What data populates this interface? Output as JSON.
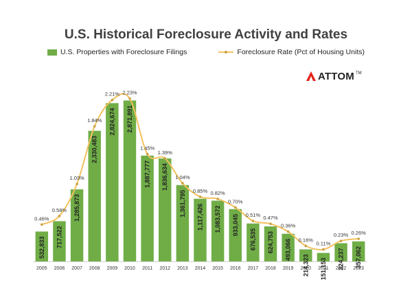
{
  "title": "U.S. Historical Foreclosure Activity and Rates",
  "legend": {
    "bar_label": "U.S. Properties with Foreclosure Filings",
    "line_label": "Foreclosure Rate (Pct of Housing Units)"
  },
  "logo": {
    "text": "ATTOM",
    "mark": "TM"
  },
  "colors": {
    "bar": "#70ad47",
    "line": "#f2c15f",
    "marker": "#c9a142"
  },
  "chart_data": {
    "type": "bar",
    "categories": [
      "2005",
      "2006",
      "2007",
      "2008",
      "2009",
      "2010",
      "2011",
      "2012",
      "2013",
      "2014",
      "2015",
      "2016",
      "2017",
      "2018",
      "2019",
      "2020",
      "2021",
      "2022",
      "2023"
    ],
    "series": [
      {
        "name": "U.S. Properties with Foreclosure Filings",
        "type": "bar",
        "values": [
          532833,
          717522,
          1285873,
          2330483,
          2824674,
          2871891,
          1887777,
          1836634,
          1361795,
          1117426,
          1083572,
          933045,
          676535,
          624753,
          493066,
          214323,
          151153,
          324237,
          357062
        ],
        "labels": [
          "532,833",
          "717,522",
          "1,285,873",
          "2,330,483",
          "2,824,674",
          "2,871,891",
          "1,887,777",
          "1,836,634",
          "1,361,795",
          "1,117,426",
          "1,083,572",
          "933,045",
          "676,535",
          "624,753",
          "493,066",
          "214,323",
          "151,153",
          "324,237",
          "357,062"
        ]
      },
      {
        "name": "Foreclosure Rate (Pct of Housing Units)",
        "type": "line",
        "values": [
          0.46,
          0.58,
          1.03,
          1.84,
          2.21,
          2.23,
          1.45,
          1.39,
          1.04,
          0.85,
          0.82,
          0.7,
          0.51,
          0.47,
          0.36,
          0.16,
          0.11,
          0.23,
          0.26
        ],
        "labels": [
          "0.46%",
          "0.58%",
          "1.03%",
          "1.84%",
          "2.21%",
          "2.23%",
          "1.45%",
          "1.39%",
          "1.04%",
          "0.85%",
          "0.82%",
          "0.70%",
          "0.51%",
          "0.47%",
          "0.36%",
          "0.16%",
          "0.11%",
          "0.23%",
          "0.26%"
        ]
      }
    ],
    "legend_position": "top",
    "grid": false
  }
}
